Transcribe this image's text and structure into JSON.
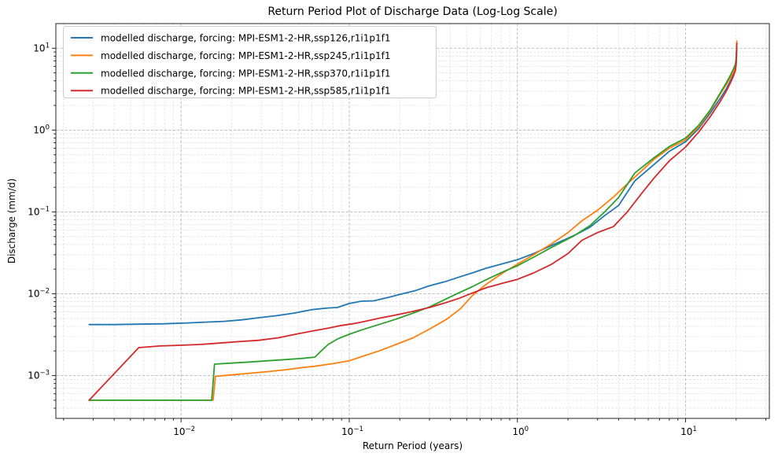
{
  "figure": {
    "title": "Return Period Plot of Discharge Data (Log-Log Scale)",
    "xlabel": "Return Period (years)",
    "ylabel": "Discharge (mm/d)"
  },
  "chart_data": {
    "type": "line",
    "title": "Return Period Plot of Discharge Data (Log-Log Scale)",
    "xlabel": "Return Period (years)",
    "ylabel": "Discharge (mm/d)",
    "x_scale": "log",
    "y_scale": "log",
    "xlim": [
      0.0018,
      31.5
    ],
    "ylim": [
      0.0003,
      20
    ],
    "x_major_ticks": [
      0.01,
      0.1,
      1,
      10
    ],
    "y_major_ticks": [
      0.001,
      0.01,
      0.1,
      1,
      10
    ],
    "grid": {
      "which": "both",
      "style": "dashed",
      "major_color": "#b9b9b9",
      "minor_color": "#dcdcdc"
    },
    "legend_position": "upper left",
    "series": [
      {
        "name": "ssp126",
        "label": "modelled discharge, forcing: MPI-ESM1-2-HR,ssp126,r1i1p1f1",
        "color": "#1f77b4",
        "points": [
          [
            0.00284,
            0.0042
          ],
          [
            0.004,
            0.0042
          ],
          [
            0.0055,
            0.00425
          ],
          [
            0.008,
            0.0043
          ],
          [
            0.011,
            0.0044
          ],
          [
            0.014,
            0.0045
          ],
          [
            0.018,
            0.0046
          ],
          [
            0.023,
            0.0048
          ],
          [
            0.029,
            0.0051
          ],
          [
            0.037,
            0.0054
          ],
          [
            0.047,
            0.0058
          ],
          [
            0.06,
            0.0064
          ],
          [
            0.075,
            0.0067
          ],
          [
            0.085,
            0.0068
          ],
          [
            0.1,
            0.0076
          ],
          [
            0.118,
            0.0081
          ],
          [
            0.14,
            0.0082
          ],
          [
            0.17,
            0.009
          ],
          [
            0.2,
            0.0098
          ],
          [
            0.25,
            0.011
          ],
          [
            0.3,
            0.0125
          ],
          [
            0.37,
            0.014
          ],
          [
            0.45,
            0.016
          ],
          [
            0.54,
            0.018
          ],
          [
            0.65,
            0.0205
          ],
          [
            0.8,
            0.023
          ],
          [
            1.0,
            0.026
          ],
          [
            1.25,
            0.031
          ],
          [
            1.6,
            0.039
          ],
          [
            2.2,
            0.052
          ],
          [
            2.7,
            0.065
          ],
          [
            3.3,
            0.09
          ],
          [
            4,
            0.12
          ],
          [
            5,
            0.24
          ],
          [
            6.5,
            0.38
          ],
          [
            8,
            0.55
          ],
          [
            10,
            0.72
          ],
          [
            12,
            1.05
          ],
          [
            14,
            1.6
          ],
          [
            16,
            2.4
          ],
          [
            17.5,
            3.2
          ],
          [
            18.5,
            4.0
          ],
          [
            19.3,
            4.8
          ],
          [
            19.8,
            5.6
          ],
          [
            20,
            6.6
          ],
          [
            20.1,
            8.2
          ],
          [
            20.15,
            10.5
          ]
        ]
      },
      {
        "name": "ssp245",
        "label": "modelled discharge, forcing: MPI-ESM1-2-HR,ssp245,r1i1p1f1",
        "color": "#ff7f0e",
        "points": [
          [
            0.00284,
            0.0005
          ],
          [
            0.006,
            0.0005
          ],
          [
            0.01,
            0.0005
          ],
          [
            0.0155,
            0.0005
          ],
          [
            0.016,
            0.00098
          ],
          [
            0.02,
            0.00102
          ],
          [
            0.026,
            0.00107
          ],
          [
            0.033,
            0.00112
          ],
          [
            0.042,
            0.00118
          ],
          [
            0.052,
            0.00125
          ],
          [
            0.0625,
            0.0013
          ],
          [
            0.08,
            0.0014
          ],
          [
            0.1,
            0.00152
          ],
          [
            0.118,
            0.0017
          ],
          [
            0.15,
            0.002
          ],
          [
            0.19,
            0.0024
          ],
          [
            0.24,
            0.0029
          ],
          [
            0.3,
            0.0037
          ],
          [
            0.38,
            0.0049
          ],
          [
            0.46,
            0.0066
          ],
          [
            0.54,
            0.0095
          ],
          [
            0.65,
            0.013
          ],
          [
            0.82,
            0.018
          ],
          [
            1.0,
            0.023
          ],
          [
            1.25,
            0.03
          ],
          [
            1.6,
            0.041
          ],
          [
            2.0,
            0.056
          ],
          [
            2.42,
            0.078
          ],
          [
            3.0,
            0.105
          ],
          [
            3.7,
            0.15
          ],
          [
            4.5,
            0.22
          ],
          [
            5.5,
            0.32
          ],
          [
            6.5,
            0.44
          ],
          [
            8,
            0.6
          ],
          [
            10,
            0.76
          ],
          [
            12,
            1.1
          ],
          [
            14,
            1.7
          ],
          [
            16,
            2.7
          ],
          [
            17.5,
            3.6
          ],
          [
            18.5,
            4.4
          ],
          [
            19.3,
            5.2
          ],
          [
            19.8,
            6.0
          ],
          [
            20,
            7.2
          ],
          [
            20.1,
            9.5
          ],
          [
            20.18,
            12.2
          ]
        ]
      },
      {
        "name": "ssp370",
        "label": "modelled discharge, forcing: MPI-ESM1-2-HR,ssp370,r1i1p1f1",
        "color": "#2ca02c",
        "points": [
          [
            0.00284,
            0.0005
          ],
          [
            0.006,
            0.0005
          ],
          [
            0.01,
            0.0005
          ],
          [
            0.0152,
            0.0005
          ],
          [
            0.0158,
            0.00138
          ],
          [
            0.02,
            0.00142
          ],
          [
            0.026,
            0.00147
          ],
          [
            0.033,
            0.00152
          ],
          [
            0.042,
            0.00157
          ],
          [
            0.052,
            0.00162
          ],
          [
            0.0625,
            0.00168
          ],
          [
            0.068,
            0.002
          ],
          [
            0.075,
            0.0024
          ],
          [
            0.085,
            0.0028
          ],
          [
            0.1,
            0.0032
          ],
          [
            0.118,
            0.0036
          ],
          [
            0.15,
            0.0042
          ],
          [
            0.19,
            0.0049
          ],
          [
            0.24,
            0.0058
          ],
          [
            0.3,
            0.0069
          ],
          [
            0.37,
            0.0085
          ],
          [
            0.45,
            0.0103
          ],
          [
            0.54,
            0.0122
          ],
          [
            0.65,
            0.0148
          ],
          [
            0.82,
            0.0185
          ],
          [
            1.0,
            0.022
          ],
          [
            1.25,
            0.028
          ],
          [
            1.6,
            0.037
          ],
          [
            2.17,
            0.051
          ],
          [
            2.7,
            0.068
          ],
          [
            3.3,
            0.1
          ],
          [
            4,
            0.15
          ],
          [
            5,
            0.3
          ],
          [
            6.5,
            0.46
          ],
          [
            8,
            0.63
          ],
          [
            10,
            0.8
          ],
          [
            12,
            1.15
          ],
          [
            14,
            1.75
          ],
          [
            16,
            2.8
          ],
          [
            17.5,
            3.8
          ],
          [
            18.5,
            4.7
          ],
          [
            19.3,
            5.6
          ],
          [
            19.8,
            6.4
          ],
          [
            20,
            7.6
          ],
          [
            20.1,
            9.2
          ],
          [
            20.13,
            11.0
          ]
        ]
      },
      {
        "name": "ssp585",
        "label": "modelled discharge, forcing: MPI-ESM1-2-HR,ssp585,r1i1p1f1",
        "color": "#d62728",
        "points": [
          [
            0.00284,
            0.0005
          ],
          [
            0.0056,
            0.0022
          ],
          [
            0.0075,
            0.0023
          ],
          [
            0.01,
            0.00235
          ],
          [
            0.013,
            0.0024
          ],
          [
            0.017,
            0.0025
          ],
          [
            0.022,
            0.0026
          ],
          [
            0.029,
            0.0027
          ],
          [
            0.038,
            0.0029
          ],
          [
            0.048,
            0.0032
          ],
          [
            0.06,
            0.0035
          ],
          [
            0.075,
            0.0038
          ],
          [
            0.09,
            0.0041
          ],
          [
            0.105,
            0.0043
          ],
          [
            0.118,
            0.0045
          ],
          [
            0.15,
            0.005
          ],
          [
            0.19,
            0.0055
          ],
          [
            0.24,
            0.0061
          ],
          [
            0.3,
            0.0068
          ],
          [
            0.37,
            0.0077
          ],
          [
            0.45,
            0.0088
          ],
          [
            0.54,
            0.0102
          ],
          [
            0.65,
            0.0118
          ],
          [
            0.82,
            0.0135
          ],
          [
            1.0,
            0.015
          ],
          [
            1.25,
            0.018
          ],
          [
            1.6,
            0.023
          ],
          [
            2.0,
            0.031
          ],
          [
            2.42,
            0.045
          ],
          [
            3.0,
            0.056
          ],
          [
            3.72,
            0.066
          ],
          [
            4.5,
            0.1
          ],
          [
            5.5,
            0.17
          ],
          [
            6.5,
            0.26
          ],
          [
            8,
            0.42
          ],
          [
            10,
            0.62
          ],
          [
            12,
            0.95
          ],
          [
            14,
            1.45
          ],
          [
            16,
            2.2
          ],
          [
            17.5,
            3.0
          ],
          [
            18.5,
            3.8
          ],
          [
            19.3,
            4.6
          ],
          [
            19.8,
            5.4
          ],
          [
            20,
            6.4
          ],
          [
            20.1,
            8.5
          ],
          [
            20.16,
            11.5
          ]
        ]
      }
    ]
  }
}
